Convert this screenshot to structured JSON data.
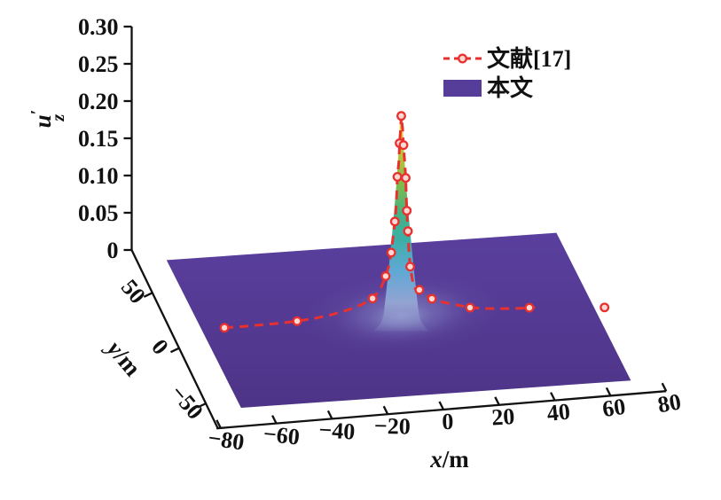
{
  "figure": {
    "background": "#ffffff",
    "description": "3D surface plot of vertical displacement u'z over x-y plane with sharp central peak, compared with a reference dashed curve"
  },
  "axes": {
    "z": {
      "label": {
        "base": "u",
        "prime": "′",
        "sub": "z"
      },
      "ticks": [
        "0.30",
        "0.25",
        "0.20",
        "0.15",
        "0.10",
        "0.05",
        "0"
      ]
    },
    "x": {
      "label": {
        "var": "x",
        "unit": "/m"
      },
      "ticks": [
        "−80",
        "−60",
        "−40",
        "−20",
        "0",
        "20",
        "40",
        "60",
        "80"
      ]
    },
    "y": {
      "label": {
        "var": "y",
        "unit": "/m"
      },
      "ticks": [
        "50",
        "0",
        "−50"
      ]
    }
  },
  "legend": [
    {
      "label": "文献[17]",
      "swatch": "dashed-line-with-circle-marker",
      "color": "#e8312e"
    },
    {
      "label": "本文",
      "swatch": "filled-rectangle",
      "color": "#563d99"
    }
  ],
  "chart_data": {
    "type": "3d-surface",
    "title": "",
    "x_label": "x/m",
    "y_label": "y/m",
    "z_label": "u′z",
    "x_ticks": [
      -80,
      -60,
      -40,
      -20,
      0,
      20,
      40,
      60,
      80
    ],
    "y_ticks": [
      50,
      0,
      -50
    ],
    "z_ticks": [
      0.3,
      0.25,
      0.2,
      0.15,
      0.1,
      0.05,
      0
    ],
    "z_range": [
      0,
      0.3
    ],
    "grid": false,
    "legend_position": "top-right-inside",
    "surface": {
      "name": "本文",
      "legend_color": "#563d99",
      "plane_color": "#533a92",
      "x_range": [
        -80,
        60
      ],
      "y_range": [
        -60,
        80
      ],
      "peak": {
        "x": -11,
        "y": 0,
        "z": 0.285
      },
      "colormap_top_to_base": [
        "#f0ae2e",
        "#e9c92c",
        "#b9c53b",
        "#7dbb4b",
        "#45b184",
        "#3cafa6",
        "#5fa8d5",
        "#94a3d2"
      ],
      "description": "flat plane at u'z ≈ 0 with a sharp localized spike at (x ≈ −11, y ≈ 0)"
    },
    "reference_curve": {
      "name": "文献[17]",
      "color": "#e8312e",
      "line_style": "dashed",
      "marker": "open-circle",
      "section": "y = 0",
      "point_format": "[x, u'z, has_marker]",
      "segments": [
        [
          [
            -74.5,
            0.021,
            1
          ],
          [
            -68,
            0.021,
            0
          ],
          [
            -61,
            0.0215,
            0
          ],
          [
            -54,
            0.022,
            0
          ],
          [
            -48.4,
            0.0231,
            1
          ],
          [
            -42,
            0.0252,
            0
          ],
          [
            -36,
            0.0285,
            0
          ],
          [
            -30,
            0.0335,
            0
          ],
          [
            -25,
            0.0395,
            0
          ],
          [
            -21.3,
            0.0465,
            1
          ],
          [
            -18.5,
            0.058,
            0
          ],
          [
            -16.6,
            0.0752,
            1
          ],
          [
            -15.3,
            0.0907,
            0
          ],
          [
            -14.6,
            0.1063,
            1
          ],
          [
            -13.9,
            0.1288,
            0
          ],
          [
            -13.3,
            0.1477,
            1
          ],
          [
            -12.8,
            0.169,
            0
          ],
          [
            -12.4,
            0.2075,
            1
          ],
          [
            -11.8,
            0.2298,
            0
          ],
          [
            -11.6,
            0.2524,
            1
          ],
          [
            -11.2,
            0.2736,
            0
          ],
          [
            -11.0,
            0.2889,
            1
          ],
          [
            -10.5,
            0.2712,
            0
          ],
          [
            -10.2,
            0.2495,
            1
          ],
          [
            -9.7,
            0.2232,
            0
          ],
          [
            -9.4,
            0.2052,
            1
          ],
          [
            -9.2,
            0.1814,
            0
          ],
          [
            -9.0,
            0.1611,
            1
          ],
          [
            -8.6,
            0.1335,
            1
          ],
          [
            -8.3,
            0.1097,
            0
          ],
          [
            -7.8,
            0.0857,
            1
          ],
          [
            -7.0,
            0.0677,
            0
          ],
          [
            -6.0,
            0.0557,
            0
          ],
          [
            -4.5,
            0.0536,
            1
          ],
          [
            -2.2,
            0.0458,
            0
          ],
          [
            0,
            0.0405,
            1
          ],
          [
            4.1,
            0.0347,
            0
          ],
          [
            8.9,
            0.0298,
            0
          ],
          [
            13.7,
            0.025,
            1
          ],
          [
            20,
            0.0221,
            0
          ],
          [
            26,
            0.0204,
            0
          ],
          [
            31,
            0.0194,
            0
          ],
          [
            35,
            0.0193,
            1
          ],
          [
            37,
            0.0192,
            0
          ]
        ],
        [
          [
            62,
            0.0126,
            1
          ]
        ]
      ]
    }
  }
}
